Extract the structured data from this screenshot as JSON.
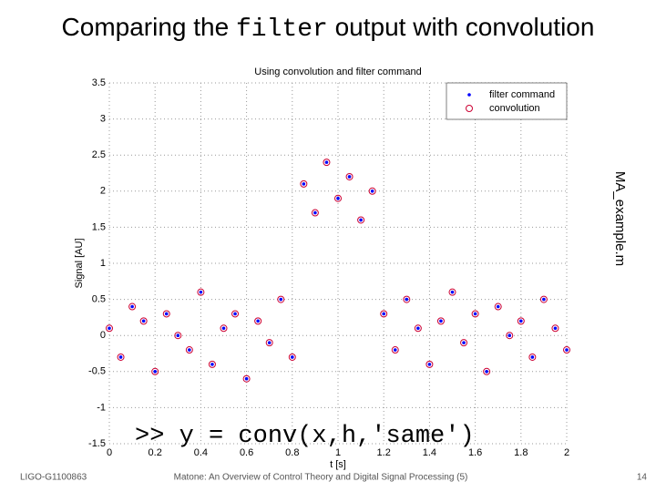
{
  "slide": {
    "title_before": "Comparing the",
    "title_code": "filter",
    "title_after": "output with convolution",
    "side_label": "MA_example.m",
    "code": ">> y = conv(x,h,'same')",
    "footer_left": "LIGO-G1100863",
    "footer_center": "Matone: An Overview of Control Theory and Digital Signal Processing (5)",
    "page_number": "14"
  },
  "chart_data": {
    "type": "scatter",
    "title": "Using convolution and filter command",
    "x_label": "t [s]",
    "y_label": "Signal [AU]",
    "x": [
      0,
      0.05,
      0.1,
      0.15,
      0.2,
      0.25,
      0.3,
      0.35,
      0.4,
      0.45,
      0.5,
      0.55,
      0.6,
      0.65,
      0.7,
      0.75,
      0.8,
      0.85,
      0.9,
      0.95,
      1,
      1.05,
      1.1,
      1.15,
      1.2,
      1.25,
      1.3,
      1.35,
      1.4,
      1.45,
      1.5,
      1.55,
      1.6,
      1.65,
      1.7,
      1.75,
      1.8,
      1.85,
      1.9,
      1.95,
      2
    ],
    "series": [
      {
        "name": "filter command",
        "color": "#0000ff",
        "marker": "dot",
        "values": [
          0.1,
          -0.3,
          0.4,
          0.2,
          -0.5,
          0.3,
          0.0,
          -0.2,
          0.6,
          -0.4,
          0.1,
          0.3,
          -0.6,
          0.2,
          -0.1,
          0.5,
          -0.3,
          2.1,
          1.7,
          2.4,
          1.9,
          2.2,
          1.6,
          2.0,
          0.3,
          -0.2,
          0.5,
          0.1,
          -0.4,
          0.2,
          0.6,
          -0.1,
          0.3,
          -0.5,
          0.4,
          0.0,
          0.2,
          -0.3,
          0.5,
          0.1,
          -0.2
        ]
      },
      {
        "name": "convolution",
        "color": "#cc0033",
        "marker": "circle",
        "values": [
          0.1,
          -0.3,
          0.4,
          0.2,
          -0.5,
          0.3,
          0.0,
          -0.2,
          0.6,
          -0.4,
          0.1,
          0.3,
          -0.6,
          0.2,
          -0.1,
          0.5,
          -0.3,
          2.1,
          1.7,
          2.4,
          1.9,
          2.2,
          1.6,
          2.0,
          0.3,
          -0.2,
          0.5,
          0.1,
          -0.4,
          0.2,
          0.6,
          -0.1,
          0.3,
          -0.5,
          0.4,
          0.0,
          0.2,
          -0.3,
          0.5,
          0.1,
          -0.2
        ]
      }
    ],
    "xlim": [
      0,
      2
    ],
    "xticks": [
      0,
      0.2,
      0.4,
      0.6,
      0.8,
      1,
      1.2,
      1.4,
      1.6,
      1.8,
      2
    ],
    "ylim": [
      -1.5,
      3.5
    ],
    "yticks": [
      -1.5,
      -1,
      -0.5,
      0,
      0.5,
      1,
      1.5,
      2,
      2.5,
      3,
      3.5
    ],
    "grid": true,
    "legend": "upper right"
  }
}
